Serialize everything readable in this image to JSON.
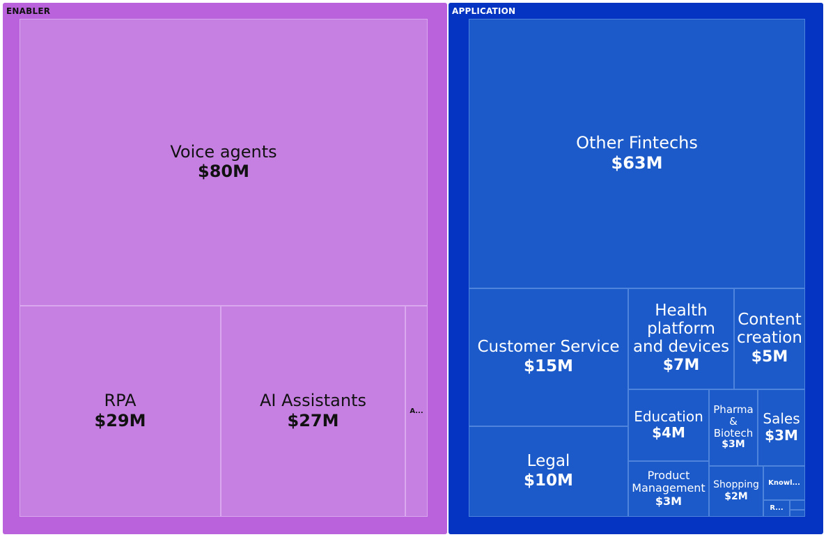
{
  "colors": {
    "enabler_frame": "#b962db",
    "enabler_tile": "#c680e2",
    "enabler_border": "#d9a8ee",
    "enabler_text": "#111111",
    "application_frame": "#0533c2",
    "application_tile": "#1b5ac8",
    "application_border": "#4f84dc",
    "application_text": "#ffffff"
  },
  "chart_data": {
    "type": "treemap",
    "title": "",
    "unit": "$M",
    "groups": [
      {
        "name": "ENABLER",
        "children": [
          {
            "name": "Voice agents",
            "value": 80,
            "label": "$80M"
          },
          {
            "name": "RPA",
            "value": 29,
            "label": "$29M"
          },
          {
            "name": "AI Assistants",
            "value": 27,
            "label": "$27M"
          },
          {
            "name": "A...",
            "value": 3,
            "label": ""
          }
        ]
      },
      {
        "name": "APPLICATION",
        "children": [
          {
            "name": "Other Fintechs",
            "value": 63,
            "label": "$63M"
          },
          {
            "name": "Customer Service",
            "value": 15,
            "label": "$15M"
          },
          {
            "name": "Legal",
            "value": 10,
            "label": "$10M"
          },
          {
            "name": "Health\nplatform\nand devices",
            "value": 7,
            "label": "$7M"
          },
          {
            "name": "Content\ncreation",
            "value": 5,
            "label": "$5M"
          },
          {
            "name": "Education",
            "value": 4,
            "label": "$4M"
          },
          {
            "name": "Pharma\n&\nBiotech",
            "value": 3,
            "label": "$3M"
          },
          {
            "name": "Sales",
            "value": 3,
            "label": "$3M"
          },
          {
            "name": "Product\nManagement",
            "value": 3,
            "label": "$3M"
          },
          {
            "name": "Shopping",
            "value": 2,
            "label": "$2M"
          },
          {
            "name": "Knowl...",
            "value": 1,
            "label": ""
          },
          {
            "name": "R...",
            "value": 0.5,
            "label": ""
          },
          {
            "name": "",
            "value": 0.3,
            "label": ""
          },
          {
            "name": "",
            "value": 0.2,
            "label": ""
          }
        ]
      }
    ]
  }
}
